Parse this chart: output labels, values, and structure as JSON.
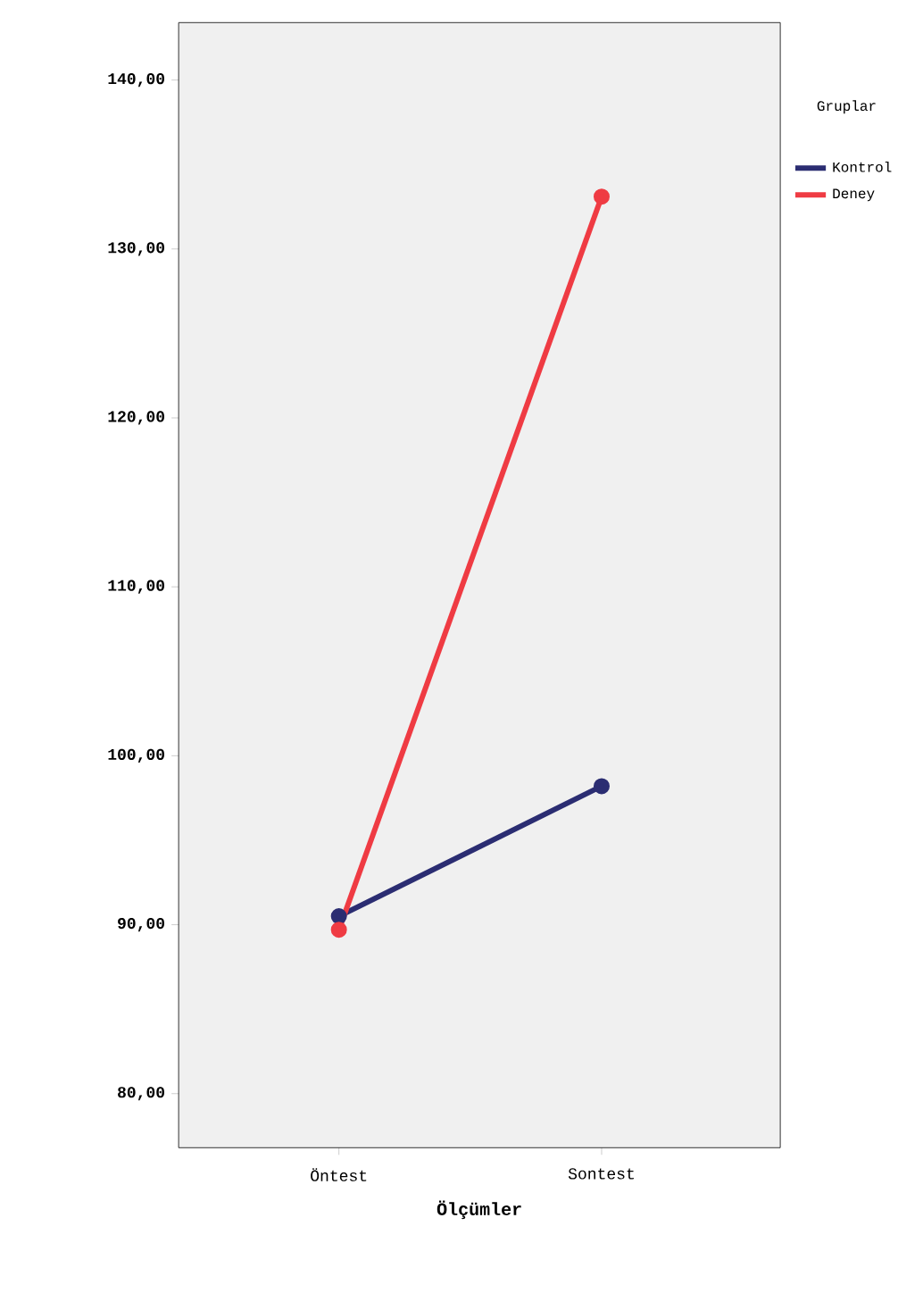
{
  "chart_data": {
    "type": "line",
    "xlabel": "Ölçümler",
    "legend_title": "Gruplar",
    "categories": [
      "Öntest",
      "Sontest"
    ],
    "series": [
      {
        "name": "Kontrol",
        "color": "#2b2d72",
        "values": [
          90.5,
          98.2
        ]
      },
      {
        "name": "Deney",
        "color": "#ef3b43",
        "values": [
          89.7,
          133.1
        ]
      }
    ],
    "ylim": [
      76.8,
      143.4
    ],
    "yticks": [
      {
        "value": 80,
        "label": "80,00"
      },
      {
        "value": 90,
        "label": "90,00"
      },
      {
        "value": 100,
        "label": "100,00"
      },
      {
        "value": 110,
        "label": "110,00"
      },
      {
        "value": 120,
        "label": "120,00"
      },
      {
        "value": 130,
        "label": "130,00"
      },
      {
        "value": 140,
        "label": "140,00"
      }
    ],
    "legend": "right",
    "marker": "circle",
    "line_style": "solid",
    "grid": false
  }
}
